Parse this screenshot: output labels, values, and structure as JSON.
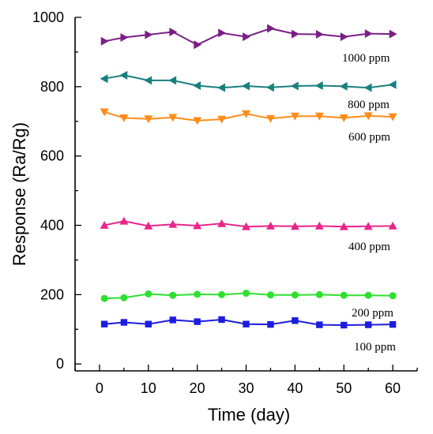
{
  "chart_data": {
    "type": "line",
    "title": "",
    "xlabel": "Time (day)",
    "ylabel": "Response (Ra/Rg)",
    "xlim": [
      -5,
      65
    ],
    "ylim": [
      -20,
      1000
    ],
    "xticks": [
      0,
      10,
      20,
      30,
      40,
      50,
      60
    ],
    "yticks": [
      0,
      200,
      400,
      600,
      800,
      1000
    ],
    "grid": false,
    "legend": "inline labels to the right",
    "x": [
      1,
      5,
      10,
      15,
      20,
      25,
      30,
      35,
      40,
      45,
      50,
      55,
      60
    ],
    "series": [
      {
        "name": "1000 ppm",
        "color": "#7a1f86",
        "marker": "triangle-right",
        "values": [
          931,
          942,
          950,
          958,
          921,
          955,
          944,
          968,
          952,
          951,
          944,
          953,
          952
        ]
      },
      {
        "name": "800 ppm",
        "color": "#1a7f7f",
        "marker": "triangle-left",
        "values": [
          823,
          833,
          818,
          818,
          803,
          797,
          802,
          798,
          802,
          803,
          801,
          797,
          806
        ]
      },
      {
        "name": "600 ppm",
        "color": "#ff8c1a",
        "marker": "triangle-down",
        "values": [
          727,
          710,
          707,
          711,
          702,
          706,
          722,
          708,
          715,
          715,
          710,
          716,
          713
        ]
      },
      {
        "name": "400 ppm",
        "color": "#e8258a",
        "marker": "triangle-up",
        "values": [
          400,
          412,
          398,
          403,
          399,
          405,
          396,
          398,
          397,
          398,
          396,
          397,
          398
        ]
      },
      {
        "name": "200 ppm",
        "color": "#2ee02e",
        "marker": "circle",
        "values": [
          189,
          191,
          202,
          198,
          201,
          200,
          204,
          199,
          199,
          200,
          198,
          198,
          197
        ]
      },
      {
        "name": "100 ppm",
        "color": "#1c1ce0",
        "marker": "square",
        "values": [
          115,
          120,
          115,
          127,
          122,
          128,
          115,
          114,
          125,
          113,
          112,
          113,
          114
        ]
      }
    ]
  }
}
